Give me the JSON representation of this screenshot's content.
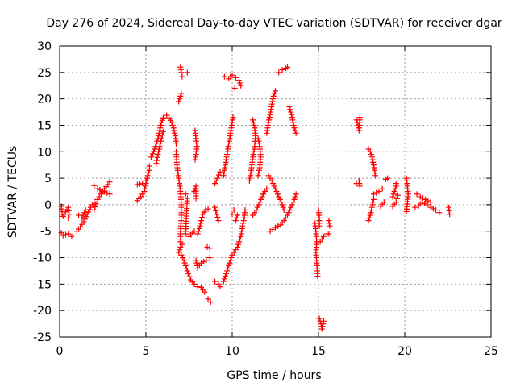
{
  "chart_data": {
    "type": "scatter",
    "title": "Day 276 of 2024, Sidereal Day-to-day VTEC variation (SDTVAR) for receiver dgar",
    "xlabel": "GPS time / hours",
    "ylabel": "SDTVAR / TECUs",
    "xlim": [
      0,
      25
    ],
    "ylim": [
      -25,
      30
    ],
    "xticks": [
      0,
      5,
      10,
      15,
      20,
      25
    ],
    "yticks": [
      -25,
      -20,
      -15,
      -10,
      -5,
      0,
      5,
      10,
      15,
      20,
      25,
      30
    ],
    "grid": true,
    "marker": "+",
    "color": "#ff0000",
    "segments": [
      [
        [
          0.1,
          -0.3
        ],
        [
          0.15,
          -1.8
        ],
        [
          0.2,
          -2.2
        ],
        [
          0.5,
          -0.5
        ],
        [
          0.55,
          -1.8
        ],
        [
          0.5,
          -2.5
        ]
      ],
      [
        [
          0.1,
          -5.3
        ],
        [
          0.2,
          -5.8
        ],
        [
          0.5,
          -5.5
        ],
        [
          0.7,
          -6.0
        ]
      ],
      [
        [
          1.0,
          -5.0
        ],
        [
          1.2,
          -4.2
        ],
        [
          1.4,
          -3.2
        ],
        [
          1.6,
          -1.8
        ],
        [
          1.8,
          -0.5
        ],
        [
          2.0,
          0.5
        ]
      ],
      [
        [
          1.1,
          -2.0
        ],
        [
          1.3,
          -2.5
        ],
        [
          1.5,
          -1.0
        ]
      ],
      [
        [
          2.0,
          -1.0
        ],
        [
          2.1,
          0.2
        ],
        [
          2.2,
          1.0
        ],
        [
          2.4,
          2.0
        ],
        [
          2.6,
          3.0
        ],
        [
          2.8,
          3.8
        ],
        [
          2.9,
          4.3
        ]
      ],
      [
        [
          2.0,
          3.6
        ],
        [
          2.2,
          3.0
        ],
        [
          2.6,
          2.4
        ],
        [
          2.9,
          2.0
        ]
      ],
      [
        [
          4.5,
          0.8
        ],
        [
          4.7,
          1.5
        ],
        [
          4.9,
          2.5
        ],
        [
          5.0,
          4.0
        ],
        [
          5.1,
          5.5
        ],
        [
          5.2,
          6.5
        ],
        [
          5.2,
          7.3
        ]
      ],
      [
        [
          4.5,
          3.8
        ],
        [
          4.8,
          4.0
        ],
        [
          5.0,
          4.5
        ]
      ],
      [
        [
          5.3,
          9.0
        ],
        [
          5.4,
          9.6
        ],
        [
          5.5,
          10.5
        ],
        [
          5.6,
          11.5
        ],
        [
          5.7,
          12.5
        ],
        [
          5.8,
          14.0
        ],
        [
          5.9,
          15.5
        ],
        [
          6.0,
          16.4
        ],
        [
          6.2,
          16.9
        ],
        [
          6.35,
          16.4
        ],
        [
          6.5,
          15.5
        ],
        [
          6.6,
          14.5
        ],
        [
          6.7,
          13.0
        ],
        [
          6.75,
          11.5
        ]
      ],
      [
        [
          5.6,
          7.8
        ],
        [
          5.7,
          9.5
        ],
        [
          5.8,
          11.0
        ],
        [
          5.9,
          12.5
        ],
        [
          6.0,
          13.8
        ]
      ],
      [
        [
          6.75,
          10.0
        ],
        [
          6.8,
          7.5
        ],
        [
          6.9,
          5.0
        ],
        [
          7.0,
          2.5
        ],
        [
          7.05,
          0.0
        ],
        [
          7.05,
          -2.5
        ],
        [
          7.0,
          -5.0
        ],
        [
          7.0,
          -7.0
        ]
      ],
      [
        [
          6.9,
          -9.0
        ],
        [
          7.0,
          -8.0
        ],
        [
          7.1,
          -7.5
        ]
      ],
      [
        [
          7.05,
          -9.5
        ],
        [
          7.2,
          -10.5
        ],
        [
          7.3,
          -11.5
        ],
        [
          7.45,
          -13.0
        ],
        [
          7.6,
          -14.2
        ],
        [
          7.8,
          -15.0
        ],
        [
          8.0,
          -15.5
        ],
        [
          8.2,
          -15.6
        ],
        [
          8.4,
          -16.5
        ]
      ],
      [
        [
          8.6,
          -17.8
        ],
        [
          8.75,
          -18.4
        ]
      ],
      [
        [
          7.0,
          26.0
        ],
        [
          7.05,
          25.0
        ],
        [
          7.1,
          24.2
        ]
      ],
      [
        [
          7.4,
          25.0
        ]
      ],
      [
        [
          6.9,
          19.5
        ],
        [
          7.0,
          20.5
        ],
        [
          7.05,
          21.0
        ]
      ],
      [
        [
          7.3,
          2.0
        ],
        [
          7.4,
          1.2
        ],
        [
          7.3,
          -5.5
        ],
        [
          7.5,
          -6.0
        ],
        [
          7.8,
          -5.0
        ]
      ],
      [
        [
          7.8,
          2.5
        ],
        [
          7.9,
          3.5
        ],
        [
          7.9,
          1.2
        ]
      ],
      [
        [
          7.85,
          14.0
        ],
        [
          7.9,
          12.5
        ],
        [
          7.95,
          11.0
        ],
        [
          7.9,
          9.5
        ],
        [
          7.85,
          8.5
        ]
      ],
      [
        [
          7.9,
          -10.5
        ],
        [
          8.0,
          -12.0
        ],
        [
          8.2,
          -11.0
        ],
        [
          8.5,
          -10.5
        ],
        [
          8.7,
          -10.0
        ]
      ],
      [
        [
          8.0,
          -5.5
        ],
        [
          8.1,
          -4.5
        ],
        [
          8.2,
          -3.0
        ],
        [
          8.3,
          -1.8
        ],
        [
          8.45,
          -1.0
        ],
        [
          8.6,
          -0.8
        ]
      ],
      [
        [
          8.55,
          -8.0
        ],
        [
          8.7,
          -8.2
        ]
      ],
      [
        [
          9.0,
          -14.5
        ],
        [
          9.2,
          -15.0
        ],
        [
          9.3,
          -15.5
        ]
      ],
      [
        [
          9.0,
          -0.5
        ],
        [
          9.1,
          -1.8
        ],
        [
          9.2,
          -3.0
        ]
      ],
      [
        [
          9.0,
          4.0
        ],
        [
          9.15,
          5.0
        ],
        [
          9.3,
          6.2
        ]
      ],
      [
        [
          9.5,
          -14.5
        ],
        [
          9.6,
          -13.5
        ],
        [
          9.7,
          -12.5
        ],
        [
          9.8,
          -11.5
        ],
        [
          9.9,
          -10.5
        ],
        [
          10.0,
          -9.5
        ]
      ],
      [
        [
          9.5,
          5.5
        ],
        [
          9.6,
          7.5
        ],
        [
          9.7,
          9.5
        ],
        [
          9.8,
          11.5
        ],
        [
          9.9,
          13.5
        ],
        [
          10.0,
          15.5
        ],
        [
          10.05,
          16.5
        ]
      ],
      [
        [
          9.55,
          24.2
        ],
        [
          9.8,
          23.8
        ],
        [
          10.0,
          24.5
        ],
        [
          10.2,
          24.0
        ],
        [
          10.4,
          23.5
        ],
        [
          10.5,
          22.5
        ]
      ],
      [
        [
          10.15,
          22.0
        ]
      ],
      [
        [
          10.1,
          -9.0
        ],
        [
          10.3,
          -8.0
        ],
        [
          10.5,
          -6.0
        ],
        [
          10.6,
          -4.0
        ],
        [
          10.7,
          -2.5
        ],
        [
          10.75,
          -1.0
        ]
      ],
      [
        [
          10.2,
          -3.0
        ],
        [
          10.3,
          -2.0
        ]
      ],
      [
        [
          10.0,
          -1.8
        ],
        [
          10.1,
          -1.0
        ]
      ],
      [
        [
          11.0,
          4.5
        ],
        [
          11.1,
          6.5
        ],
        [
          11.2,
          9.0
        ],
        [
          11.3,
          11.0
        ],
        [
          11.35,
          13.0
        ],
        [
          11.3,
          14.5
        ],
        [
          11.2,
          16.0
        ]
      ],
      [
        [
          11.5,
          12.5
        ],
        [
          11.6,
          11.0
        ],
        [
          11.65,
          9.0
        ],
        [
          11.6,
          7.0
        ],
        [
          11.5,
          5.5
        ]
      ],
      [
        [
          11.2,
          -2.0
        ],
        [
          11.4,
          -1.0
        ],
        [
          11.6,
          0.5
        ],
        [
          11.8,
          2.0
        ],
        [
          12.0,
          3.0
        ]
      ],
      [
        [
          12.0,
          13.5
        ],
        [
          12.1,
          15.5
        ],
        [
          12.2,
          17.0
        ],
        [
          12.3,
          19.0
        ],
        [
          12.4,
          20.5
        ],
        [
          12.5,
          21.5
        ]
      ],
      [
        [
          12.1,
          5.5
        ],
        [
          12.3,
          4.5
        ],
        [
          12.5,
          3.0
        ],
        [
          12.7,
          1.5
        ],
        [
          12.9,
          0.0
        ],
        [
          13.0,
          -1.0
        ]
      ],
      [
        [
          12.2,
          -5.0
        ],
        [
          12.5,
          -4.3
        ],
        [
          12.8,
          -3.8
        ],
        [
          13.0,
          -3.0
        ],
        [
          13.2,
          -2.0
        ],
        [
          13.4,
          -0.5
        ],
        [
          13.6,
          1.0
        ],
        [
          13.7,
          2.0
        ]
      ],
      [
        [
          12.7,
          25.0
        ],
        [
          12.9,
          25.5
        ],
        [
          13.1,
          25.8
        ],
        [
          13.2,
          26.0
        ]
      ],
      [
        [
          13.3,
          18.5
        ],
        [
          13.4,
          17.5
        ],
        [
          13.5,
          16.0
        ],
        [
          13.6,
          14.5
        ],
        [
          13.7,
          13.5
        ]
      ],
      [
        [
          14.8,
          -3.5
        ],
        [
          14.85,
          -5.0
        ],
        [
          14.9,
          -7.0
        ],
        [
          14.85,
          -9.0
        ],
        [
          14.9,
          -11.0
        ],
        [
          14.95,
          -13.5
        ]
      ],
      [
        [
          15.0,
          -1.0
        ],
        [
          15.05,
          -2.5
        ],
        [
          15.05,
          -4.0
        ]
      ],
      [
        [
          15.1,
          -7.0
        ],
        [
          15.3,
          -6.0
        ],
        [
          15.5,
          -5.5
        ],
        [
          15.6,
          -5.5
        ]
      ],
      [
        [
          15.6,
          -3.0
        ],
        [
          15.65,
          -4.0
        ]
      ],
      [
        [
          15.05,
          -21.5
        ],
        [
          15.15,
          -22.5
        ],
        [
          15.2,
          -23.5
        ],
        [
          15.3,
          -22.0
        ]
      ],
      [
        [
          17.2,
          16.0
        ],
        [
          17.3,
          15.0
        ],
        [
          17.35,
          14.0
        ],
        [
          17.4,
          16.5
        ]
      ],
      [
        [
          17.2,
          4.0
        ],
        [
          17.35,
          4.5
        ],
        [
          17.4,
          3.5
        ]
      ],
      [
        [
          17.9,
          10.5
        ],
        [
          18.0,
          10.0
        ],
        [
          18.1,
          9.0
        ],
        [
          18.2,
          7.5
        ],
        [
          18.3,
          5.5
        ]
      ],
      [
        [
          17.9,
          -3.0
        ],
        [
          18.0,
          -2.0
        ],
        [
          18.1,
          -0.5
        ],
        [
          18.2,
          1.0
        ]
      ],
      [
        [
          18.2,
          2.0
        ],
        [
          18.5,
          2.5
        ],
        [
          18.7,
          3.0
        ]
      ],
      [
        [
          18.6,
          -0.3
        ],
        [
          18.8,
          0.5
        ]
      ],
      [
        [
          18.9,
          4.8
        ],
        [
          19.0,
          5.0
        ]
      ],
      [
        [
          19.3,
          1.5
        ],
        [
          19.4,
          2.5
        ],
        [
          19.5,
          3.5
        ],
        [
          19.5,
          4.0
        ]
      ],
      [
        [
          19.3,
          -0.3
        ],
        [
          19.5,
          0.5
        ],
        [
          19.6,
          1.8
        ]
      ],
      [
        [
          20.1,
          5.0
        ],
        [
          20.15,
          3.5
        ],
        [
          20.2,
          2.0
        ],
        [
          20.1,
          -1.3
        ]
      ],
      [
        [
          20.7,
          2.0
        ],
        [
          20.9,
          1.5
        ],
        [
          21.2,
          1.0
        ],
        [
          21.5,
          0.5
        ]
      ],
      [
        [
          20.6,
          -0.5
        ],
        [
          20.8,
          -0.2
        ],
        [
          21.0,
          0.5
        ],
        [
          21.3,
          0.0
        ],
        [
          21.5,
          -0.5
        ],
        [
          21.8,
          -1.0
        ],
        [
          22.0,
          -1.5
        ]
      ],
      [
        [
          22.55,
          -0.5
        ],
        [
          22.6,
          -1.8
        ]
      ]
    ]
  }
}
